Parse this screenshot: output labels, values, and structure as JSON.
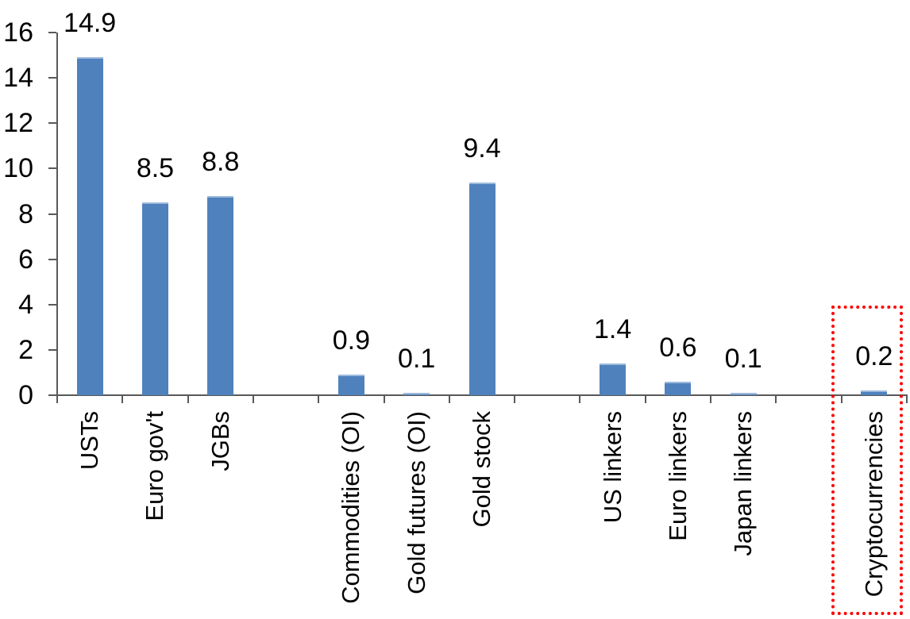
{
  "chart_data": {
    "type": "bar",
    "title": "",
    "xlabel": "",
    "ylabel": "",
    "categories": [
      "USTs",
      "Euro gov't",
      "JGBs",
      "",
      "Commodities (OI)",
      "Gold futures (OI)",
      "Gold stock",
      "",
      "US linkers",
      "Euro linkers",
      "Japan linkers",
      "",
      "Cryptocurrencies"
    ],
    "values": [
      14.9,
      8.5,
      8.8,
      null,
      0.9,
      0.1,
      9.4,
      null,
      1.4,
      0.6,
      0.1,
      null,
      0.2
    ],
    "data_labels": [
      "14.9",
      "8.5",
      "8.8",
      null,
      "0.9",
      "0.1",
      "9.4",
      null,
      "1.4",
      "0.6",
      "0.1",
      null,
      "0.2"
    ],
    "ylim": [
      0,
      16
    ],
    "ytick_step": 2,
    "ytick_labels": [
      "0",
      "2",
      "4",
      "6",
      "8",
      "10",
      "12",
      "14",
      "16"
    ],
    "grid": false,
    "legend": false,
    "bar_color": "#4f81bd",
    "axis_color": "#595959",
    "text_color": "#000000",
    "highlight": {
      "category": "Cryptocurrencies",
      "color": "#ff0000",
      "border_style": "dotted"
    }
  }
}
